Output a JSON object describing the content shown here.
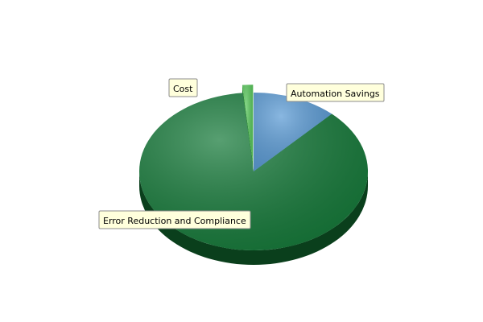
{
  "chart_data": {
    "type": "pie",
    "style": "3d",
    "slices": [
      {
        "label": "Automation Savings",
        "value": 12,
        "color": "#5b9bd5",
        "side_color": "#1d5ea8",
        "exploded": false
      },
      {
        "label": "Error Reduction and Compliance",
        "value": 86.5,
        "color": "#167a3a",
        "side_color": "#0a3f1c",
        "exploded": false
      },
      {
        "label": "Cost",
        "value": 1.5,
        "color": "#58c85b",
        "side_color": "#2f8e33",
        "exploded": true
      }
    ],
    "label_box_fill": "#ffffdc",
    "label_box_stroke": "#8c8c8c"
  }
}
